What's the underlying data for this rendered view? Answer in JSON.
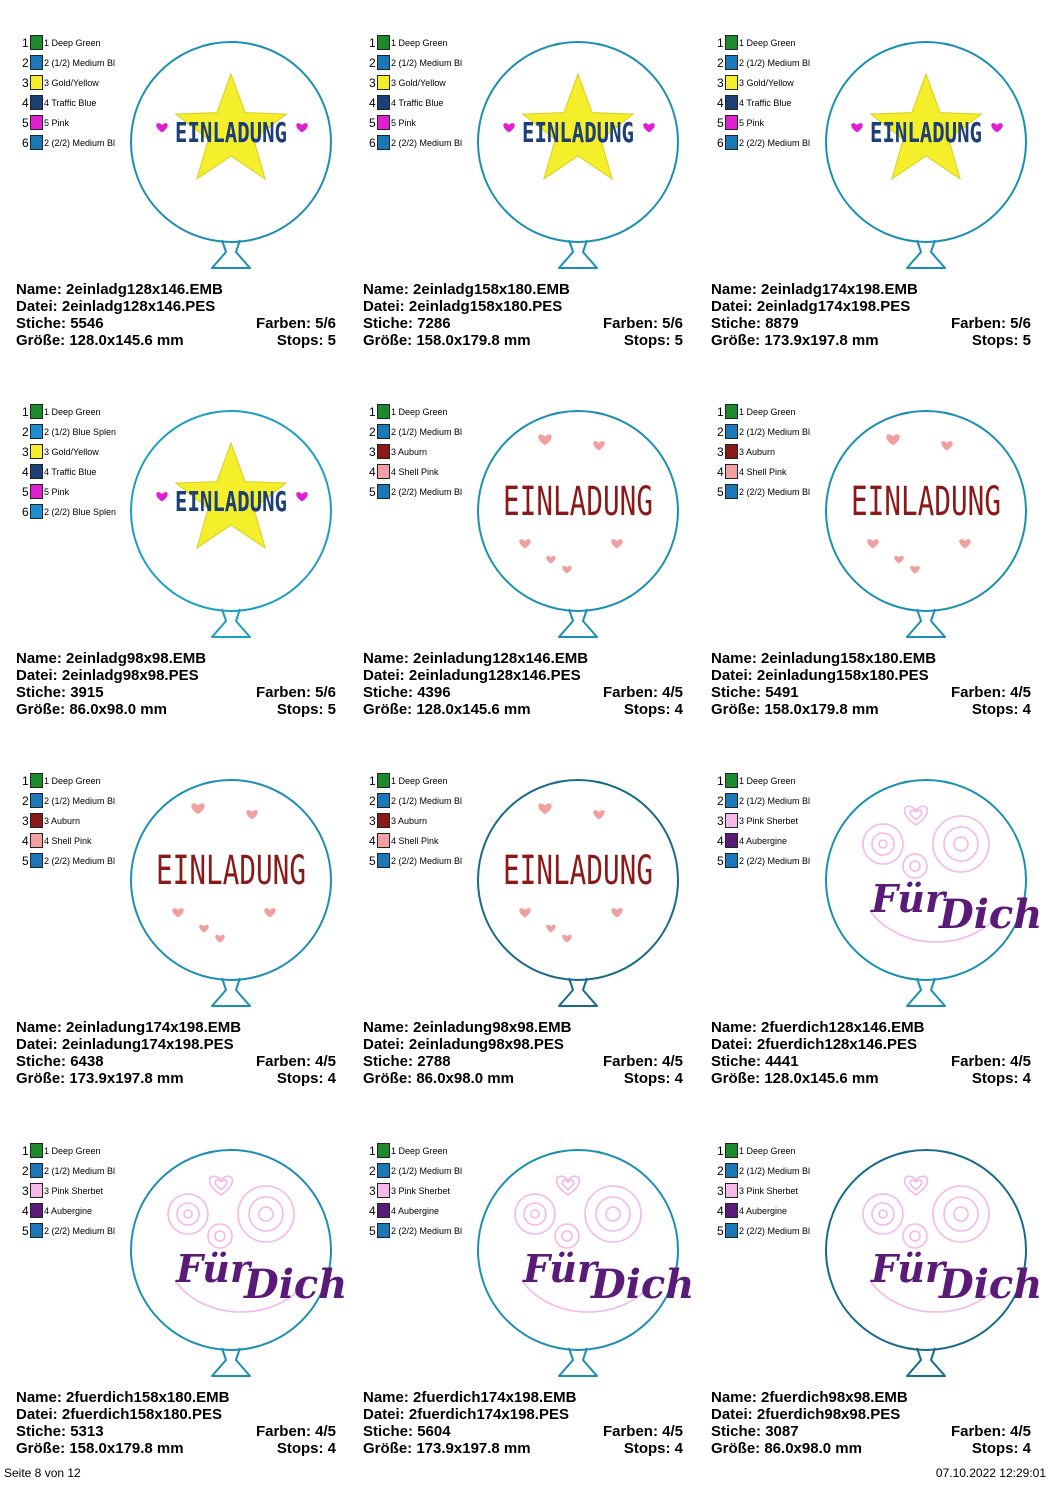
{
  "footer": {
    "page": "Seite 8 von 12",
    "datetime": "07.10.2022 12:29:01"
  },
  "labels": {
    "name": "Name:",
    "datei": "Datei:",
    "stiche": "Stiche:",
    "farben": "Farben:",
    "groesse": "Größe:",
    "stops": "Stops:"
  },
  "designs": [
    {
      "motif": "star",
      "outline": "#1b8fb3",
      "size": "128x146",
      "name": "2einladg128x146.EMB",
      "datei": "2einladg128x146.PES",
      "stiche": "5546",
      "farben": "5/6",
      "groesse": "128.0x145.6 mm",
      "stops": "5",
      "text": "EINLADUNG",
      "text2": "",
      "colors": [
        {
          "n": "1",
          "label": "1 Deep Green",
          "hex": "#1a8a2a"
        },
        {
          "n": "2",
          "label": "2 (1/2) Medium Bl",
          "hex": "#1a78b8"
        },
        {
          "n": "3",
          "label": "3 Gold/Yellow",
          "hex": "#f5ee2a"
        },
        {
          "n": "4",
          "label": "4 Traffic Blue",
          "hex": "#1c3f78"
        },
        {
          "n": "5",
          "label": "5 Pink",
          "hex": "#e020d0"
        },
        {
          "n": "6",
          "label": "2 (2/2) Medium Bl",
          "hex": "#1a78b8"
        }
      ]
    },
    {
      "motif": "star",
      "outline": "#1b8fb3",
      "size": "158x180",
      "name": "2einladg158x180.EMB",
      "datei": "2einladg158x180.PES",
      "stiche": "7286",
      "farben": "5/6",
      "groesse": "158.0x179.8 mm",
      "stops": "5",
      "text": "EINLADUNG",
      "text2": "",
      "colors": [
        {
          "n": "1",
          "label": "1 Deep Green",
          "hex": "#1a8a2a"
        },
        {
          "n": "2",
          "label": "2 (1/2) Medium Bl",
          "hex": "#1a78b8"
        },
        {
          "n": "3",
          "label": "3 Gold/Yellow",
          "hex": "#f5ee2a"
        },
        {
          "n": "4",
          "label": "4 Traffic Blue",
          "hex": "#1c3f78"
        },
        {
          "n": "5",
          "label": "5 Pink",
          "hex": "#e020d0"
        },
        {
          "n": "6",
          "label": "2 (2/2) Medium Bl",
          "hex": "#1a78b8"
        }
      ]
    },
    {
      "motif": "star",
      "outline": "#1b8fb3",
      "size": "174x198",
      "name": "2einladg174x198.EMB",
      "datei": "2einladg174x198.PES",
      "stiche": "8879",
      "farben": "5/6",
      "groesse": "173.9x197.8 mm",
      "stops": "5",
      "text": "EINLADUNG",
      "text2": "",
      "colors": [
        {
          "n": "1",
          "label": "1 Deep Green",
          "hex": "#1a8a2a"
        },
        {
          "n": "2",
          "label": "2 (1/2) Medium Bl",
          "hex": "#1a78b8"
        },
        {
          "n": "3",
          "label": "3 Gold/Yellow",
          "hex": "#f5ee2a"
        },
        {
          "n": "4",
          "label": "4 Traffic Blue",
          "hex": "#1c3f78"
        },
        {
          "n": "5",
          "label": "5 Pink",
          "hex": "#e020d0"
        },
        {
          "n": "6",
          "label": "2 (2/2) Medium Bl",
          "hex": "#1a78b8"
        }
      ]
    },
    {
      "motif": "star",
      "outline": "#1b9ec4",
      "size": "98x98",
      "name": "2einladg98x98.EMB",
      "datei": "2einladg98x98.PES",
      "stiche": "3915",
      "farben": "5/6",
      "groesse": "86.0x98.0 mm",
      "stops": "5",
      "text": "EINLADUNG",
      "text2": "",
      "colors": [
        {
          "n": "1",
          "label": "1 Deep Green",
          "hex": "#1a8a2a"
        },
        {
          "n": "2",
          "label": "2 (1/2) Blue Splen",
          "hex": "#1c8fd0"
        },
        {
          "n": "3",
          "label": "3 Gold/Yellow",
          "hex": "#f5ee2a"
        },
        {
          "n": "4",
          "label": "4 Traffic Blue",
          "hex": "#1c3f78"
        },
        {
          "n": "5",
          "label": "5 Pink",
          "hex": "#e020d0"
        },
        {
          "n": "6",
          "label": "2 (2/2) Blue Splen",
          "hex": "#1c8fd0"
        }
      ]
    },
    {
      "motif": "hearts",
      "outline": "#1b8fb3",
      "size": "128x146",
      "name": "2einladung128x146.EMB",
      "datei": "2einladung128x146.PES",
      "stiche": "4396",
      "farben": "4/5",
      "groesse": "128.0x145.6 mm",
      "stops": "4",
      "text": "EINLADUNG",
      "text2": "",
      "colors": [
        {
          "n": "1",
          "label": "1 Deep Green",
          "hex": "#1a8a2a"
        },
        {
          "n": "2",
          "label": "2 (1/2) Medium Bl",
          "hex": "#1a78b8"
        },
        {
          "n": "3",
          "label": "3 Auburn",
          "hex": "#8a1a1a"
        },
        {
          "n": "4",
          "label": "4 Shell Pink",
          "hex": "#f0a0a0"
        },
        {
          "n": "5",
          "label": "2 (2/2) Medium Bl",
          "hex": "#1a78b8"
        }
      ]
    },
    {
      "motif": "hearts",
      "outline": "#1b8fb3",
      "size": "158x180",
      "name": "2einladung158x180.EMB",
      "datei": "2einladung158x180.PES",
      "stiche": "5491",
      "farben": "4/5",
      "groesse": "158.0x179.8 mm",
      "stops": "4",
      "text": "EINLADUNG",
      "text2": "",
      "colors": [
        {
          "n": "1",
          "label": "1 Deep Green",
          "hex": "#1a8a2a"
        },
        {
          "n": "2",
          "label": "2 (1/2) Medium Bl",
          "hex": "#1a78b8"
        },
        {
          "n": "3",
          "label": "3 Auburn",
          "hex": "#8a1a1a"
        },
        {
          "n": "4",
          "label": "4 Shell Pink",
          "hex": "#f0a0a0"
        },
        {
          "n": "5",
          "label": "2 (2/2) Medium Bl",
          "hex": "#1a78b8"
        }
      ]
    },
    {
      "motif": "hearts",
      "outline": "#1b8fb3",
      "size": "174x198",
      "name": "2einladung174x198.EMB",
      "datei": "2einladung174x198.PES",
      "stiche": "6438",
      "farben": "4/5",
      "groesse": "173.9x197.8 mm",
      "stops": "4",
      "text": "EINLADUNG",
      "text2": "",
      "colors": [
        {
          "n": "1",
          "label": "1 Deep Green",
          "hex": "#1a8a2a"
        },
        {
          "n": "2",
          "label": "2 (1/2) Medium Bl",
          "hex": "#1a78b8"
        },
        {
          "n": "3",
          "label": "3 Auburn",
          "hex": "#8a1a1a"
        },
        {
          "n": "4",
          "label": "4 Shell Pink",
          "hex": "#f0a0a0"
        },
        {
          "n": "5",
          "label": "2 (2/2) Medium Bl",
          "hex": "#1a78b8"
        }
      ]
    },
    {
      "motif": "hearts",
      "outline": "#176a8a",
      "size": "98x98",
      "name": "2einladung98x98.EMB",
      "datei": "2einladung98x98.PES",
      "stiche": "2788",
      "farben": "4/5",
      "groesse": "86.0x98.0 mm",
      "stops": "4",
      "text": "EINLADUNG",
      "text2": "",
      "colors": [
        {
          "n": "1",
          "label": "1 Deep Green",
          "hex": "#1a8a2a"
        },
        {
          "n": "2",
          "label": "2 (1/2) Medium Bl",
          "hex": "#1a78b8"
        },
        {
          "n": "3",
          "label": "3 Auburn",
          "hex": "#8a1a1a"
        },
        {
          "n": "4",
          "label": "4 Shell Pink",
          "hex": "#f0a0a0"
        },
        {
          "n": "5",
          "label": "2 (2/2) Medium Bl",
          "hex": "#1a78b8"
        }
      ]
    },
    {
      "motif": "swirl",
      "outline": "#1b8fb3",
      "size": "128x146",
      "name": "2fuerdich128x146.EMB",
      "datei": "2fuerdich128x146.PES",
      "stiche": "4441",
      "farben": "4/5",
      "groesse": "128.0x145.6 mm",
      "stops": "4",
      "text": "Für",
      "text2": "Dich",
      "colors": [
        {
          "n": "1",
          "label": "1 Deep Green",
          "hex": "#1a8a2a"
        },
        {
          "n": "2",
          "label": "2 (1/2) Medium Bl",
          "hex": "#1a78b8"
        },
        {
          "n": "3",
          "label": "3 Pink Sherbet",
          "hex": "#f5b8e8"
        },
        {
          "n": "4",
          "label": "4 Aubergine",
          "hex": "#5a1a78"
        },
        {
          "n": "5",
          "label": "2 (2/2) Medium Bl",
          "hex": "#1a78b8"
        }
      ]
    },
    {
      "motif": "swirl",
      "outline": "#1b8fb3",
      "size": "158x180",
      "name": "2fuerdich158x180.EMB",
      "datei": "2fuerdich158x180.PES",
      "stiche": "5313",
      "farben": "4/5",
      "groesse": "158.0x179.8 mm",
      "stops": "4",
      "text": "Für",
      "text2": "Dich",
      "colors": [
        {
          "n": "1",
          "label": "1 Deep Green",
          "hex": "#1a8a2a"
        },
        {
          "n": "2",
          "label": "2 (1/2) Medium Bl",
          "hex": "#1a78b8"
        },
        {
          "n": "3",
          "label": "3 Pink Sherbet",
          "hex": "#f5b8e8"
        },
        {
          "n": "4",
          "label": "4 Aubergine",
          "hex": "#5a1a78"
        },
        {
          "n": "5",
          "label": "2 (2/2) Medium Bl",
          "hex": "#1a78b8"
        }
      ]
    },
    {
      "motif": "swirl",
      "outline": "#1b8fb3",
      "size": "174x198",
      "name": "2fuerdich174x198.EMB",
      "datei": "2fuerdich174x198.PES",
      "stiche": "5604",
      "farben": "4/5",
      "groesse": "173.9x197.8 mm",
      "stops": "4",
      "text": "Für",
      "text2": "Dich",
      "colors": [
        {
          "n": "1",
          "label": "1 Deep Green",
          "hex": "#1a8a2a"
        },
        {
          "n": "2",
          "label": "2 (1/2) Medium Bl",
          "hex": "#1a78b8"
        },
        {
          "n": "3",
          "label": "3 Pink Sherbet",
          "hex": "#f5b8e8"
        },
        {
          "n": "4",
          "label": "4 Aubergine",
          "hex": "#5a1a78"
        },
        {
          "n": "5",
          "label": "2 (2/2) Medium Bl",
          "hex": "#1a78b8"
        }
      ]
    },
    {
      "motif": "swirl",
      "outline": "#176a8a",
      "size": "98x98",
      "name": "2fuerdich98x98.EMB",
      "datei": "2fuerdich98x98.PES",
      "stiche": "3087",
      "farben": "4/5",
      "groesse": "86.0x98.0 mm",
      "stops": "4",
      "text": "Für",
      "text2": "Dich",
      "colors": [
        {
          "n": "1",
          "label": "1 Deep Green",
          "hex": "#1a8a2a"
        },
        {
          "n": "2",
          "label": "2 (1/2) Medium Bl",
          "hex": "#1a78b8"
        },
        {
          "n": "3",
          "label": "3 Pink Sherbet",
          "hex": "#f5b8e8"
        },
        {
          "n": "4",
          "label": "4 Aubergine",
          "hex": "#5a1a78"
        },
        {
          "n": "5",
          "label": "2 (2/2) Medium Bl",
          "hex": "#1a78b8"
        }
      ]
    }
  ]
}
